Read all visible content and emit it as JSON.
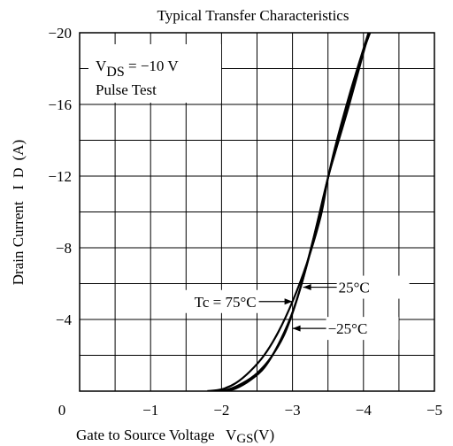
{
  "chart_data": {
    "type": "line",
    "title": "Typical Transfer Characteristics",
    "xlabel": "Gate to Source Voltage   V",
    "xlabel_sub": "GS",
    "xlabel_unit": "(V)",
    "ylabel": "Drain Current   I",
    "ylabel_sub": "D",
    "ylabel_unit": "(A)",
    "xlim": [
      0,
      -5
    ],
    "ylim": [
      0,
      -20
    ],
    "grid": true,
    "x_ticks": [
      {
        "value": 0,
        "label": "0"
      },
      {
        "value": -1,
        "label": "−1"
      },
      {
        "value": -2,
        "label": "−2"
      },
      {
        "value": -3,
        "label": "−3"
      },
      {
        "value": -4,
        "label": "−4"
      },
      {
        "value": -5,
        "label": "−5"
      }
    ],
    "y_ticks": [
      {
        "value": -4,
        "label": "−4"
      },
      {
        "value": -8,
        "label": "−8"
      },
      {
        "value": -12,
        "label": "−12"
      },
      {
        "value": -16,
        "label": "−16"
      },
      {
        "value": -20,
        "label": "−20"
      }
    ],
    "conditions": {
      "vds_prefix": "V",
      "vds_sub": "DS",
      "vds_value": " = −10 V",
      "pulse": "Pulse Test"
    },
    "series": [
      {
        "name": "Tc = 75°C",
        "x": [
          -1.8,
          -2.0,
          -2.2,
          -2.4,
          -2.6,
          -2.8,
          -3.0,
          -3.2,
          -3.4,
          -3.5,
          -3.6,
          -3.8,
          -4.0,
          -4.1
        ],
        "y": [
          0,
          -0.1,
          -0.45,
          -1.1,
          -2.0,
          -3.3,
          -5.0,
          -7.1,
          -9.8,
          -11.9,
          -13.3,
          -16.0,
          -18.9,
          -20.3
        ]
      },
      {
        "name": "25°C",
        "x": [
          -1.9,
          -2.1,
          -2.3,
          -2.5,
          -2.7,
          -2.9,
          -3.1,
          -3.3,
          -3.5,
          -3.7,
          -3.9,
          -4.0,
          -4.15
        ],
        "y": [
          0,
          -0.1,
          -0.45,
          -1.0,
          -1.9,
          -3.3,
          -5.6,
          -8.6,
          -11.9,
          -14.8,
          -17.7,
          -19.0,
          -20.6
        ]
      },
      {
        "name": "−25°C",
        "x": [
          -2.05,
          -2.2,
          -2.4,
          -2.6,
          -2.8,
          -3.0,
          -3.2,
          -3.4,
          -3.5,
          -3.6,
          -3.8,
          -4.0,
          -4.2
        ],
        "y": [
          0,
          -0.15,
          -0.6,
          -1.3,
          -2.6,
          -4.4,
          -7.0,
          -10.2,
          -11.9,
          -13.6,
          -16.5,
          -19.1,
          -21.6
        ]
      }
    ],
    "annotations": [
      {
        "text": "Tc = 75°C",
        "series": 0,
        "side": "left",
        "arrow_at": {
          "x": -3.0,
          "y": -5.0
        }
      },
      {
        "text": "25°C",
        "series": 1,
        "side": "right",
        "arrow_at": {
          "x": -3.15,
          "y": -5.8
        }
      },
      {
        "text": "−25°C",
        "series": 2,
        "side": "right",
        "arrow_at": {
          "x": -3.0,
          "y": -3.5
        }
      }
    ]
  }
}
